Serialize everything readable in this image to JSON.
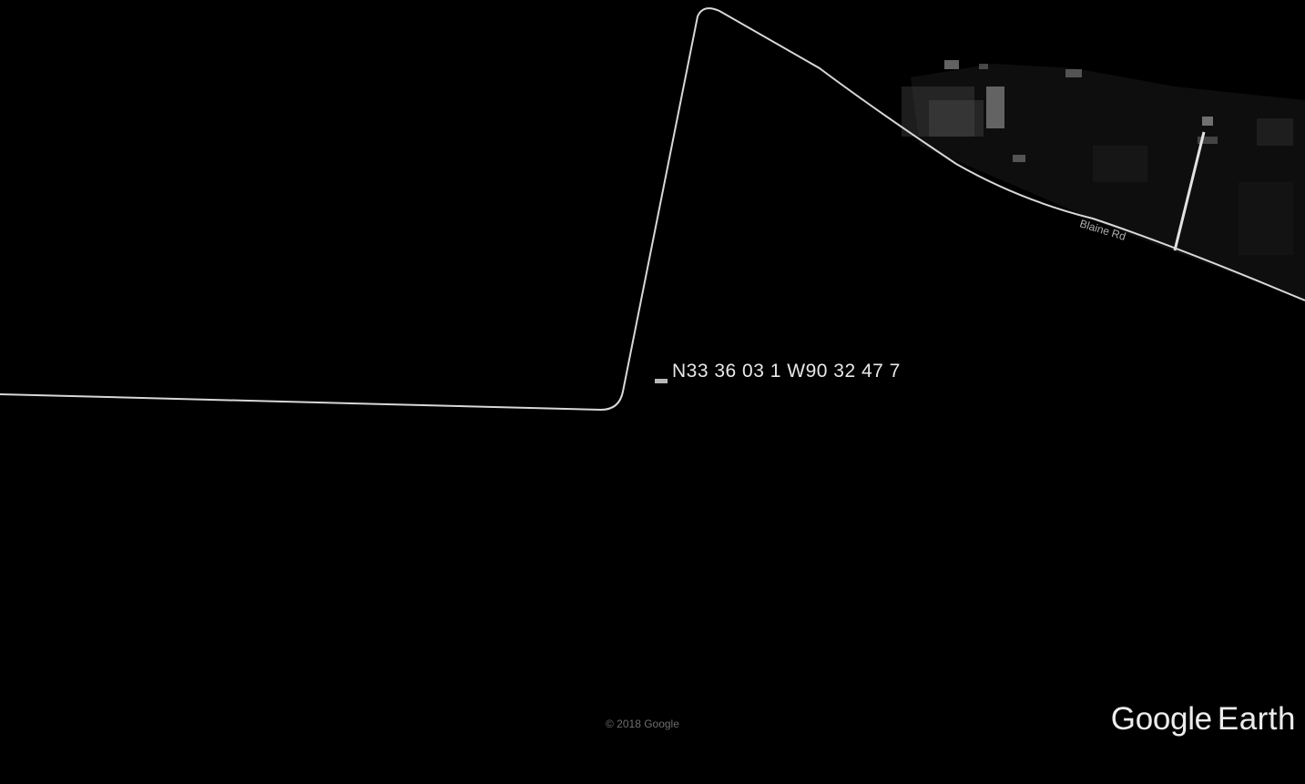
{
  "map": {
    "pin_label": "N33 36  03 1  W90 32  47 7",
    "road_label": "Blaine Rd",
    "copyright": "© 2018 Google",
    "brand_part1": "Google",
    "brand_part2": "Earth",
    "colors": {
      "background": "#000000",
      "boundary_line": "#d8d8d8",
      "label_text": "#e8e8e8",
      "pin_marker": "#b8b8b8"
    }
  }
}
